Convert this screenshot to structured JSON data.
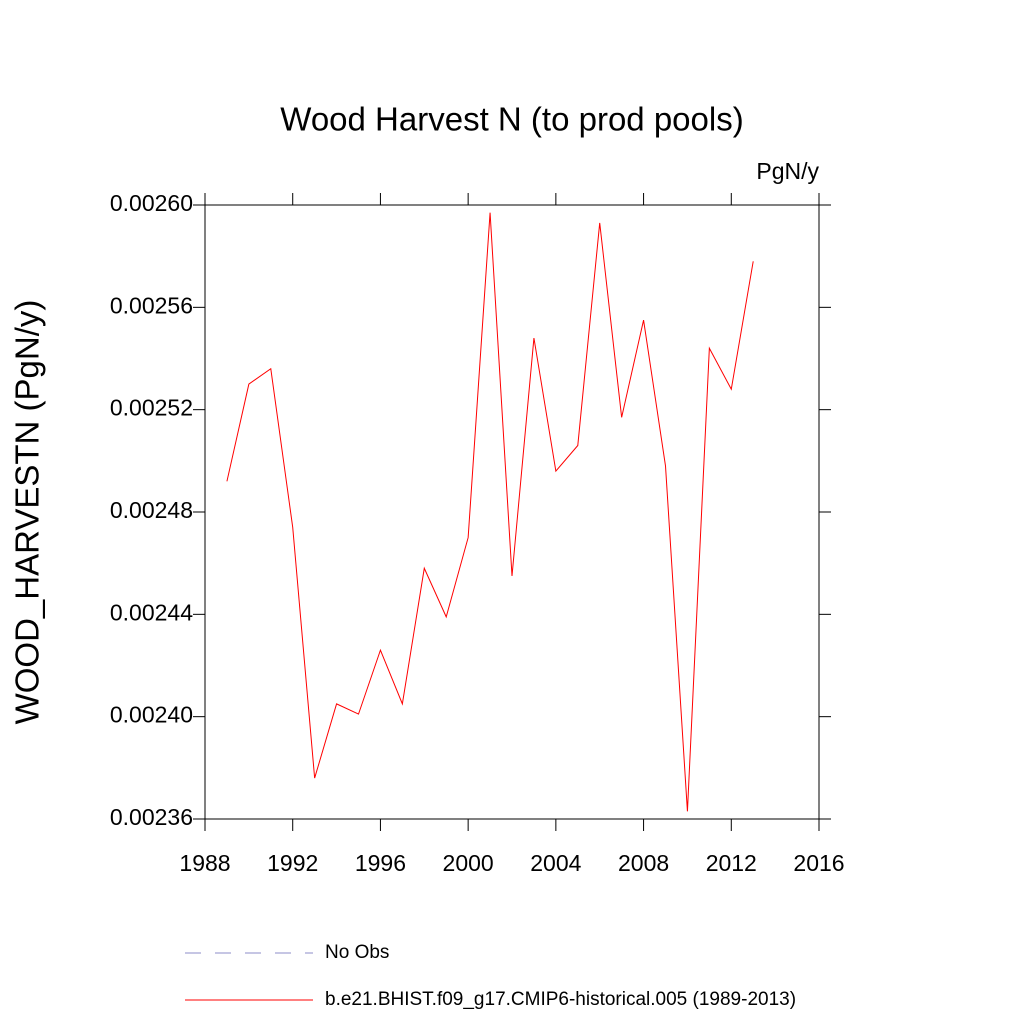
{
  "chart_data": {
    "type": "line",
    "title": "Wood Harvest N (to prod pools)",
    "units": "PgN/y",
    "y_label": "WOOD_HARVESTN  (PgN/y)",
    "x": [
      1989,
      1990,
      1991,
      1992,
      1993,
      1994,
      1995,
      1996,
      1997,
      1998,
      1999,
      2000,
      2001,
      2002,
      2003,
      2004,
      2005,
      2006,
      2007,
      2008,
      2009,
      2010,
      2011,
      2012,
      2013
    ],
    "series": [
      {
        "name": "b.e21.BHIST.f09_g17.CMIP6-historical.005 (1989-2013)",
        "color": "#ff0000",
        "values": [
          0.002492,
          0.00253,
          0.002536,
          0.002474,
          0.002376,
          0.002405,
          0.002401,
          0.002426,
          0.002405,
          0.002458,
          0.002439,
          0.00247,
          0.002597,
          0.002455,
          0.002548,
          0.002496,
          0.002506,
          0.002593,
          0.002517,
          0.002555,
          0.002498,
          0.002363,
          0.002544,
          0.002528,
          0.002578
        ]
      }
    ],
    "obs_series": {
      "name": "No Obs",
      "color": "#8c8cc8",
      "dashed": true
    },
    "xlim": [
      1988,
      2016
    ],
    "xticks": [
      1988,
      1992,
      1996,
      2000,
      2004,
      2008,
      2012,
      2016
    ],
    "ylim": [
      0.00236,
      0.0026
    ],
    "yticks": [
      {
        "value": 0.00236,
        "label": "0.00236"
      },
      {
        "value": 0.0024,
        "label": "0.00240"
      },
      {
        "value": 0.00244,
        "label": "0.00244"
      },
      {
        "value": 0.00248,
        "label": "0.00248"
      },
      {
        "value": 0.00252,
        "label": "0.00252"
      },
      {
        "value": 0.00256,
        "label": "0.00256"
      },
      {
        "value": 0.0026,
        "label": "0.00260"
      }
    ]
  }
}
